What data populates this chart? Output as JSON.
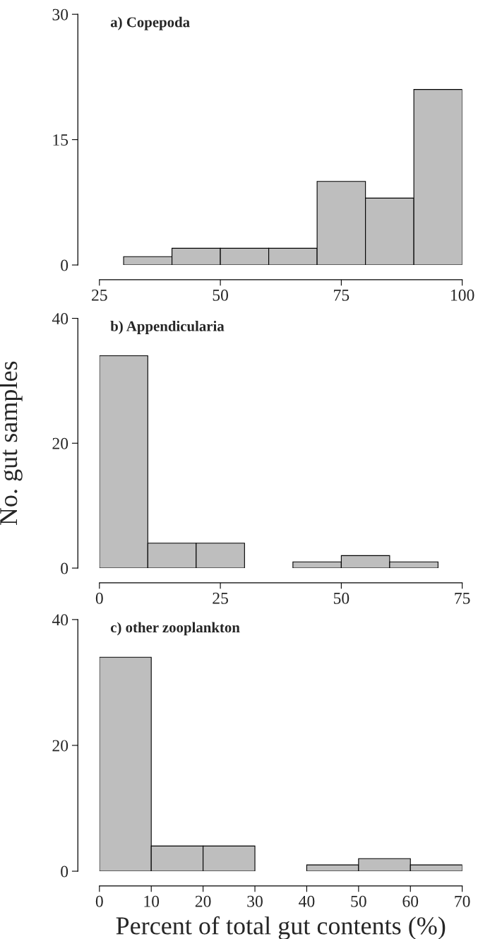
{
  "chart_data": [
    {
      "type": "histogram",
      "title": "a) Copepoda",
      "bins": [
        30,
        40,
        50,
        60,
        70,
        80,
        90,
        100
      ],
      "values": [
        1,
        2,
        2,
        2,
        10,
        8,
        21
      ],
      "color": "#bebebe",
      "xlim": [
        25,
        100
      ],
      "xticks": [
        25,
        50,
        75,
        100
      ],
      "ylim": [
        0,
        30
      ],
      "yticks": [
        0,
        15,
        30
      ]
    },
    {
      "type": "histogram",
      "title": "b) Appendicularia",
      "ylabel": "No. gut samples",
      "bins": [
        0,
        10,
        20,
        30,
        40,
        50,
        60,
        70
      ],
      "values": [
        34,
        4,
        4,
        0,
        1,
        2,
        1
      ],
      "color": "#bebebe",
      "xlim": [
        0,
        75
      ],
      "xticks": [
        0,
        25,
        50,
        75
      ],
      "ylim": [
        0,
        40
      ],
      "yticks": [
        0,
        20,
        40
      ]
    },
    {
      "type": "histogram",
      "title": "c) other zooplankton",
      "xlabel": "Percent of total gut contents (%)",
      "bins": [
        0,
        10,
        20,
        30,
        40,
        50,
        60,
        70
      ],
      "values": [
        34,
        4,
        4,
        0,
        1,
        2,
        1
      ],
      "color": "#bebebe",
      "xlim": [
        0,
        70
      ],
      "xticks": [
        0,
        10,
        20,
        30,
        40,
        50,
        60,
        70
      ],
      "ylim": [
        0,
        40
      ],
      "yticks": [
        0,
        20,
        40
      ]
    }
  ]
}
